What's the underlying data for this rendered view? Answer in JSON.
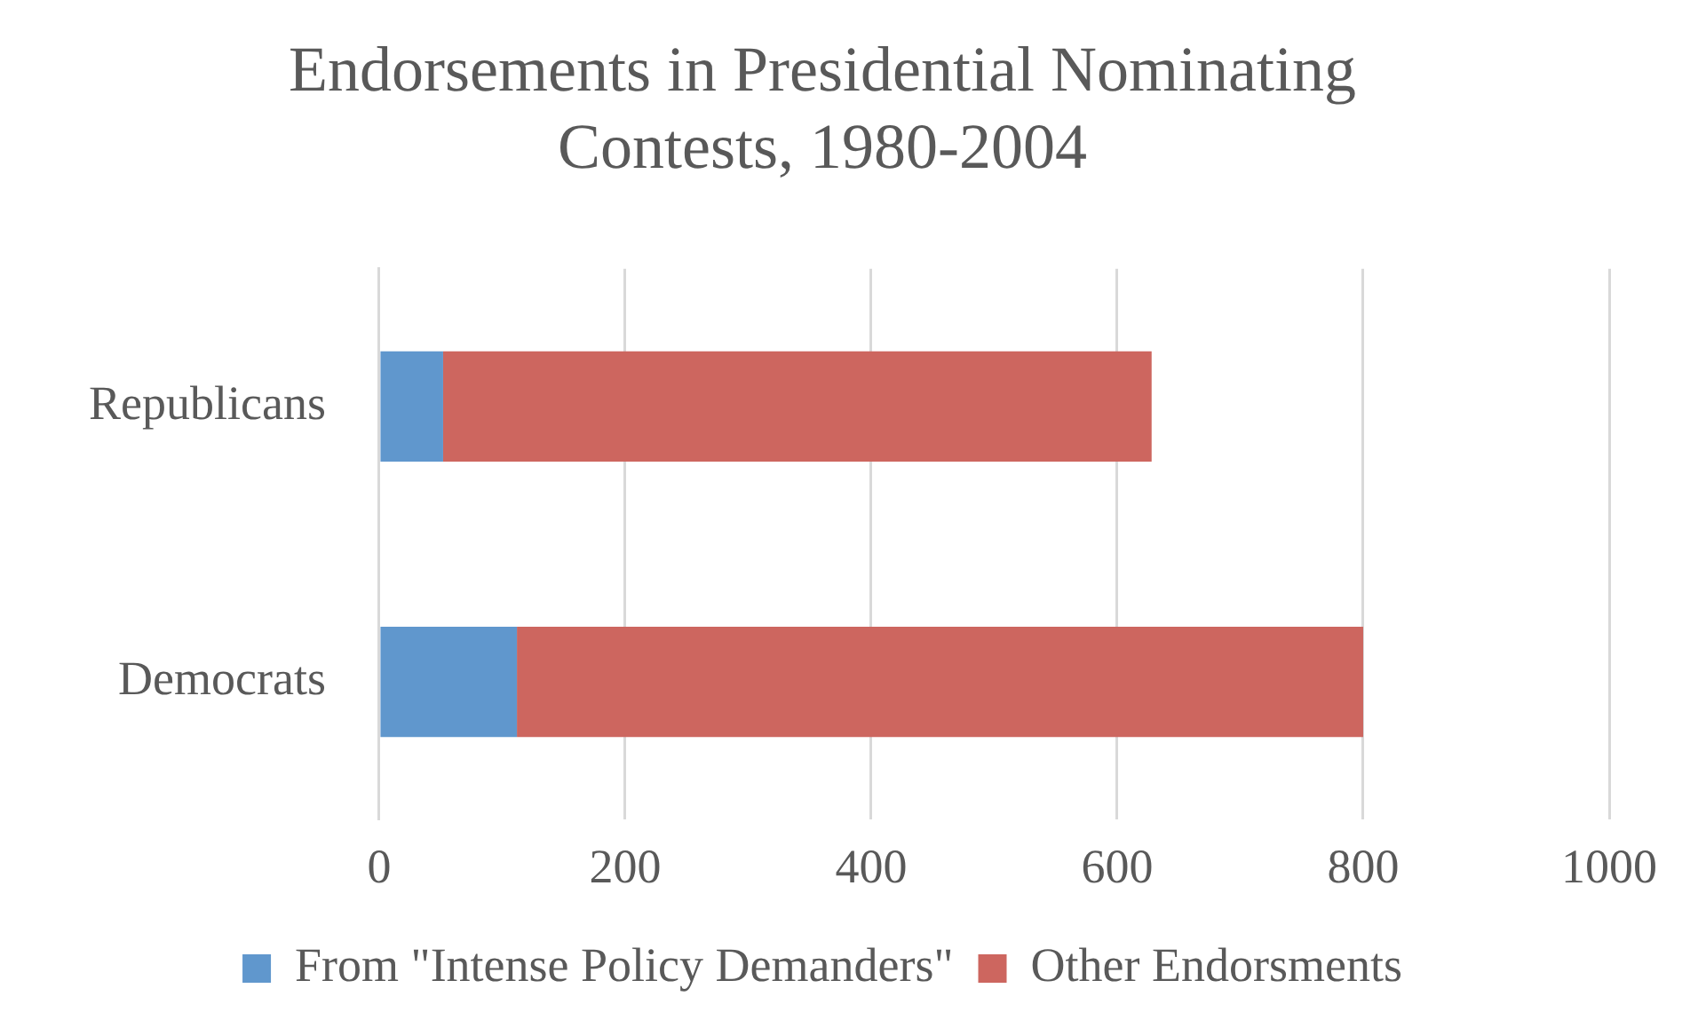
{
  "chart_data": {
    "type": "bar",
    "orientation": "horizontal",
    "stacked": true,
    "title": [
      "Endorsements in Presidential Nominating",
      "Contests, 1980-2004"
    ],
    "categories": [
      "Republicans",
      "Democrats"
    ],
    "series": [
      {
        "name": "From \"Intense Policy Demanders\"",
        "color": "#6097cd",
        "values": [
          52,
          112
        ]
      },
      {
        "name": "Other Endorsments",
        "color": "#cd665f",
        "values": [
          576,
          688
        ]
      }
    ],
    "xlim": [
      0,
      1000
    ],
    "xticks": [
      0,
      200,
      400,
      600,
      800,
      1000
    ],
    "grid": "x",
    "legend": "bottom"
  }
}
